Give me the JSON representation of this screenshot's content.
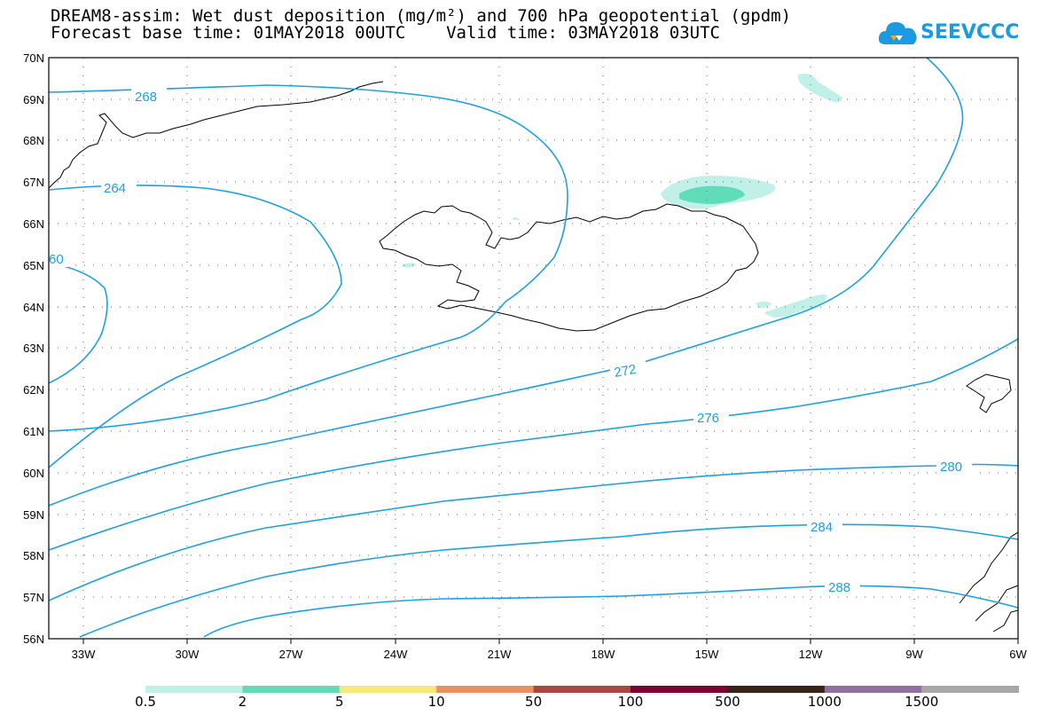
{
  "title": {
    "line1": "DREAM8-assim: Wet dust deposition (mg/m²) and 700 hPa geopotential (gpdm)",
    "line2": "Forecast base time: 01MAY2018 00UTC    Valid time: 03MAY2018 03UTC"
  },
  "logo": {
    "text": "SEEVCCC",
    "icon": "cloud-icon",
    "color": "#1a9ae0"
  },
  "map": {
    "lon_range": [
      -34,
      -6
    ],
    "lat_range": [
      56,
      70
    ],
    "lon_ticks": [
      "33W",
      "30W",
      "27W",
      "24W",
      "21W",
      "18W",
      "15W",
      "12W",
      "9W",
      "6W"
    ],
    "lat_ticks": [
      "70N",
      "69N",
      "68N",
      "67N",
      "66N",
      "65N",
      "64N",
      "63N",
      "62N",
      "61N",
      "60N",
      "59N",
      "58N",
      "57N",
      "56N"
    ],
    "contour_color": "#1ea0e0",
    "contour_labels": [
      {
        "text": "268"
      },
      {
        "text": "264"
      },
      {
        "text": "60"
      },
      {
        "text": "272"
      },
      {
        "text": "276"
      },
      {
        "text": "280"
      },
      {
        "text": "284"
      },
      {
        "text": "288"
      }
    ]
  },
  "colorbar": {
    "colors": [
      "#c0f0e8",
      "#60dcb8",
      "#f8e878",
      "#e89068",
      "#a84840",
      "#800030",
      "#382418",
      "#9070a0",
      "#a8a8a8"
    ],
    "labels": [
      "0.5",
      "2",
      "5",
      "10",
      "50",
      "100",
      "500",
      "1000",
      "1500"
    ]
  }
}
